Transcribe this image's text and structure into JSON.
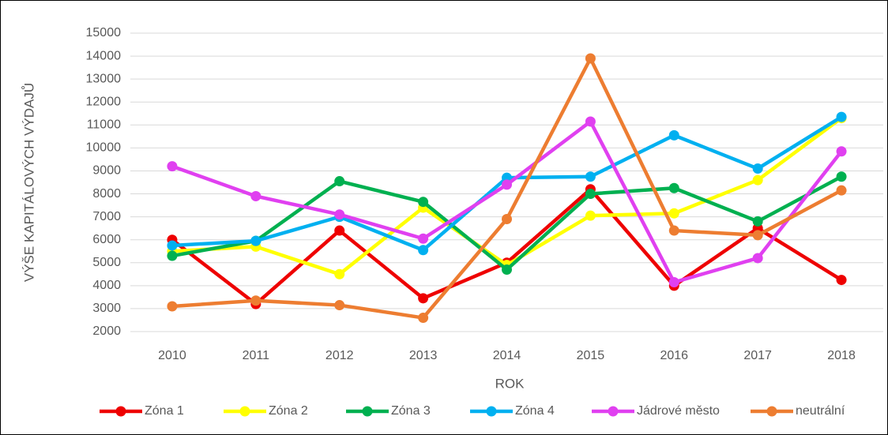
{
  "chart_data": {
    "type": "line",
    "x_label": "ROK",
    "y_label": "VÝŠE KAPITÁLOVÝCH VÝDAJŮ",
    "categories": [
      "2010",
      "2011",
      "2012",
      "2013",
      "2014",
      "2015",
      "2016",
      "2017",
      "2018"
    ],
    "series": [
      {
        "name": "Zóna 1",
        "color": "#ee0000",
        "values": [
          6000,
          3200,
          6400,
          3450,
          5000,
          8200,
          4000,
          6500,
          4250
        ]
      },
      {
        "name": "Zóna 2",
        "color": "#ffff00",
        "values": [
          5500,
          5700,
          4500,
          7400,
          4900,
          7050,
          7150,
          8600,
          11300
        ]
      },
      {
        "name": "Zóna 3",
        "color": "#00b050",
        "values": [
          5300,
          5950,
          8550,
          7650,
          4700,
          8000,
          8250,
          6800,
          8750
        ]
      },
      {
        "name": "Zóna 4",
        "color": "#00b0f0",
        "values": [
          5750,
          5950,
          7000,
          5550,
          8700,
          8750,
          10550,
          9100,
          11350
        ]
      },
      {
        "name": "Jádrové město",
        "color": "#e040f0",
        "values": [
          9200,
          7900,
          7100,
          6050,
          8400,
          11150,
          4150,
          5200,
          9850
        ]
      },
      {
        "name": "neutrální",
        "color": "#ed7d31",
        "values": [
          3100,
          3350,
          3150,
          2600,
          6900,
          13900,
          6400,
          6200,
          8150
        ]
      }
    ],
    "ylim": [
      2000,
      15000
    ],
    "yticks": [
      2000,
      3000,
      4000,
      5000,
      6000,
      7000,
      8000,
      9000,
      10000,
      11000,
      12000,
      13000,
      14000,
      15000
    ],
    "grid": true,
    "legend": "bottom"
  }
}
